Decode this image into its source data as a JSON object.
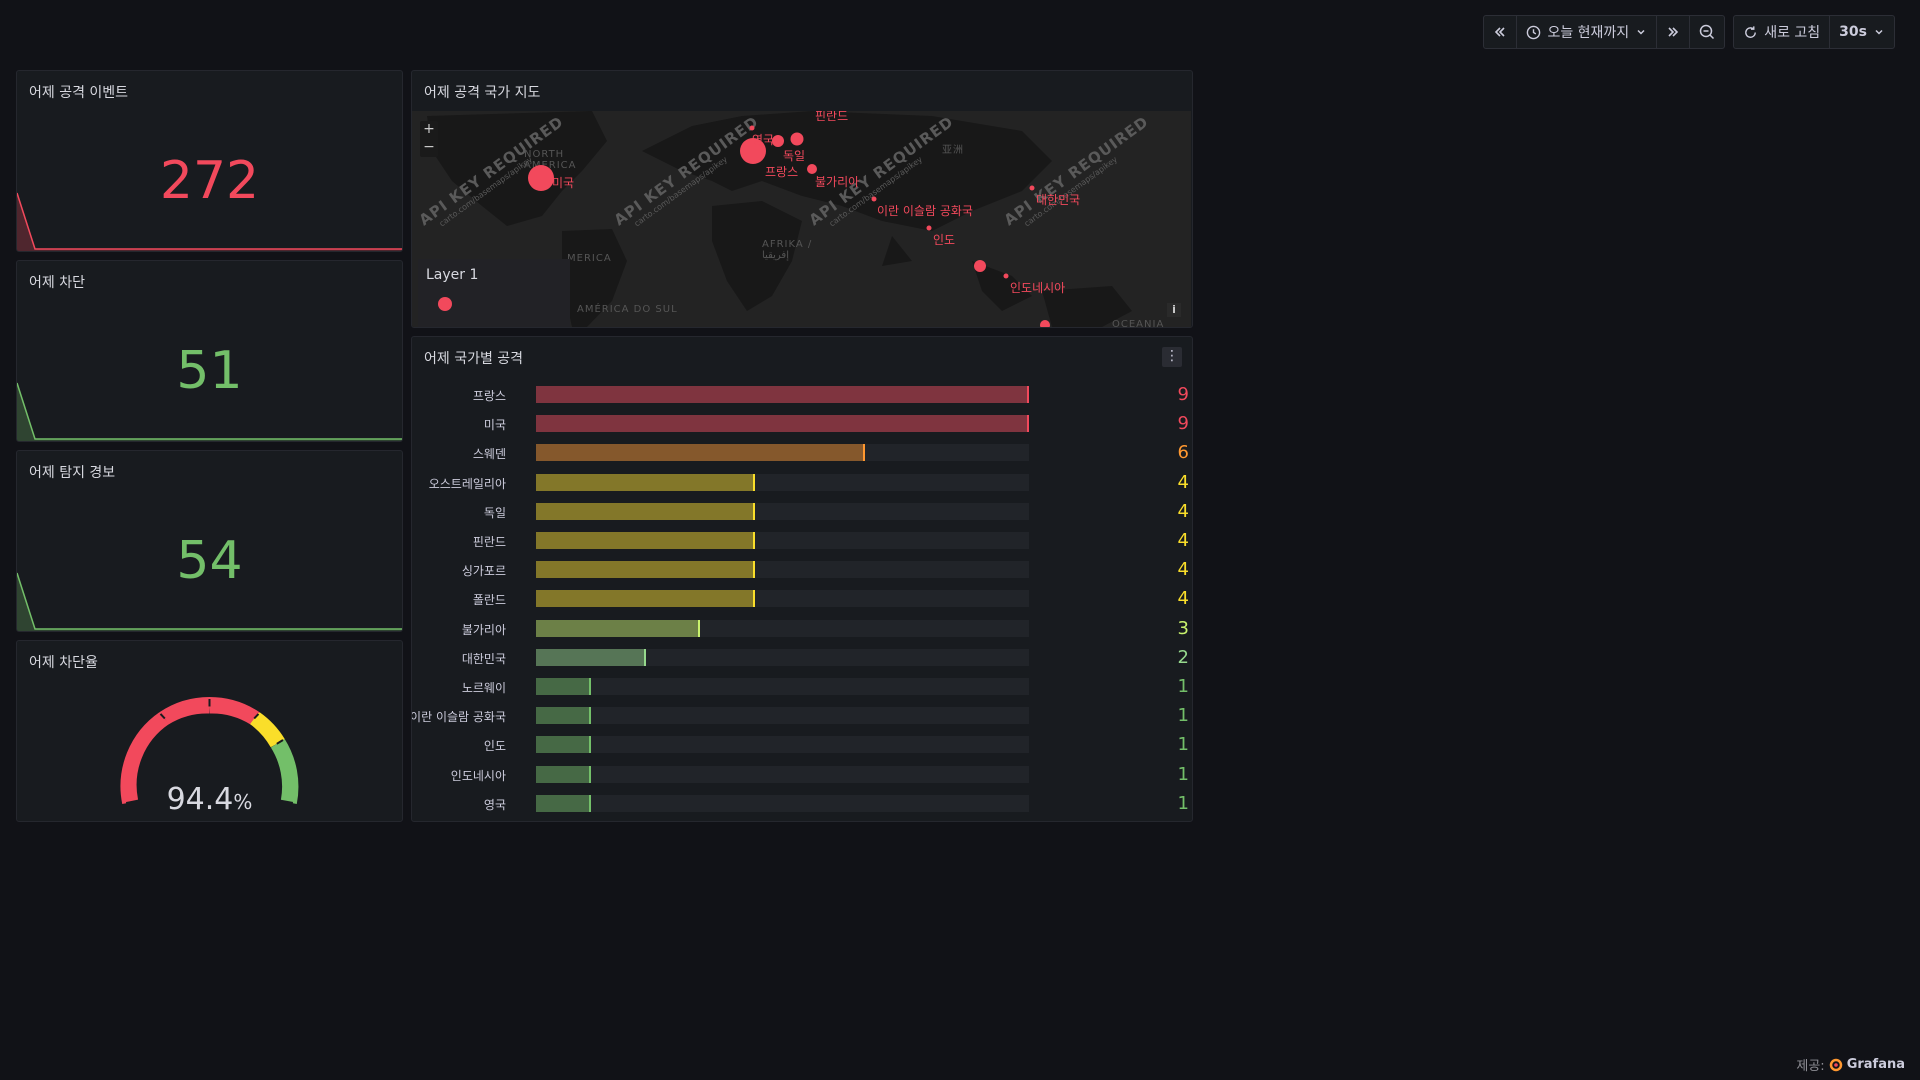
{
  "toolbar": {
    "time_range_label": "오늘 현재까지",
    "refresh_label": "새로 고침",
    "refresh_interval": "30s"
  },
  "stats": {
    "attack_events": {
      "title": "어제 공격 이벤트",
      "value": "272",
      "color": "#f2495c"
    },
    "blocked": {
      "title": "어제 차단",
      "value": "51",
      "color": "#73bf69"
    },
    "alerts": {
      "title": "어제 탐지 경보",
      "value": "54",
      "color": "#73bf69"
    }
  },
  "gauge": {
    "title": "어제 차단율",
    "value": "94.4",
    "unit": "%",
    "percent": 94.4
  },
  "map": {
    "title": "어제 공격 국가 지도",
    "layer_label": "Layer 1",
    "watermark": "API KEY REQUIRED",
    "watermark_sub": "carto.com/basemaps/apikey",
    "continents": [
      "NORTH AMERICA",
      "MERICA",
      "AFRIKA / إفريقيا",
      "AMÉRICA DO SUL",
      "OCEANIA",
      "亚洲"
    ],
    "country_labels": [
      "미국",
      "독일",
      "프랑스",
      "불가리아",
      "이란 이슬람 공화국",
      "인도",
      "대한민국",
      "인도네시아",
      "핀란드",
      "영국"
    ]
  },
  "bars": {
    "title": "어제 국가별 공격",
    "max": 9,
    "items": [
      {
        "label": "프랑스",
        "value": 9,
        "color": "#f2495c"
      },
      {
        "label": "미국",
        "value": 9,
        "color": "#f2495c"
      },
      {
        "label": "스웨덴",
        "value": 6,
        "color": "#ff9830"
      },
      {
        "label": "오스트레일리아",
        "value": 4,
        "color": "#fade2a"
      },
      {
        "label": "독일",
        "value": 4,
        "color": "#fade2a"
      },
      {
        "label": "핀란드",
        "value": 4,
        "color": "#fade2a"
      },
      {
        "label": "싱가포르",
        "value": 4,
        "color": "#fade2a"
      },
      {
        "label": "폴란드",
        "value": 4,
        "color": "#fade2a"
      },
      {
        "label": "불가리아",
        "value": 3,
        "color": "#c8f26d"
      },
      {
        "label": "대한민국",
        "value": 2,
        "color": "#96d98d"
      },
      {
        "label": "노르웨이",
        "value": 1,
        "color": "#73bf69"
      },
      {
        "label": "이란 이슬람 공화국",
        "value": 1,
        "color": "#73bf69"
      },
      {
        "label": "인도",
        "value": 1,
        "color": "#73bf69"
      },
      {
        "label": "인도네시아",
        "value": 1,
        "color": "#73bf69"
      },
      {
        "label": "영국",
        "value": 1,
        "color": "#73bf69"
      }
    ]
  },
  "footer": {
    "prefix": "제공:",
    "brand": "Grafana"
  }
}
